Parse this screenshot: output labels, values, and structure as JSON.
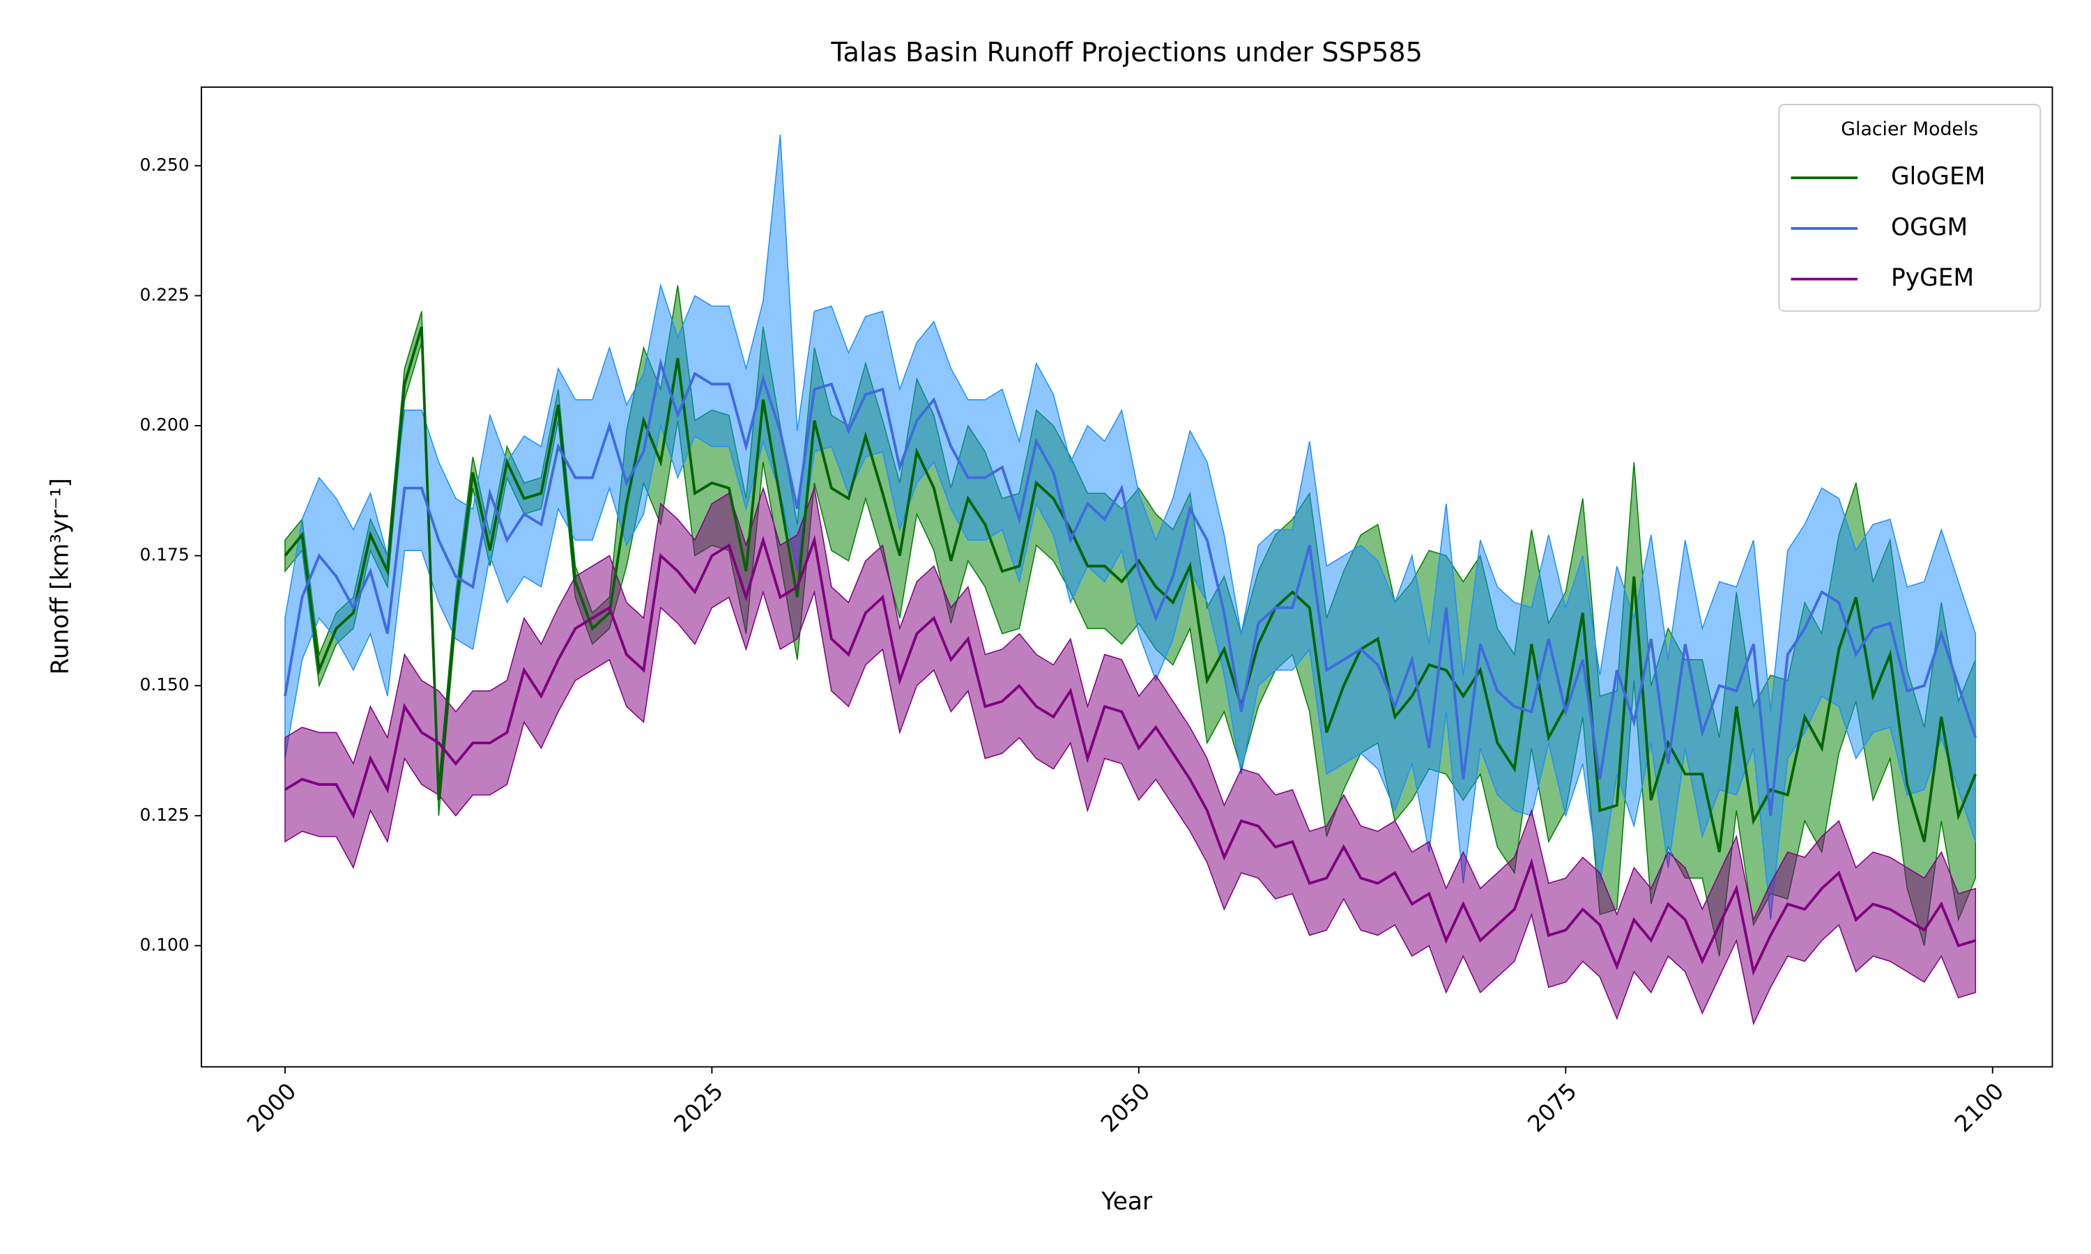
{
  "chart_data": {
    "type": "line",
    "title": "Talas Basin Runoff Projections under SSP585",
    "x_label": "Year",
    "y_label": "Runoff [km³yr⁻¹]",
    "xlim": [
      1995.1,
      2103.5
    ],
    "ylim": [
      0.0767,
      0.2651
    ],
    "xticks": [
      2000,
      2025,
      2050,
      2075,
      2100
    ],
    "yticks": [
      {
        "value": 0.1,
        "label": "0.100"
      },
      {
        "value": 0.125,
        "label": "0.125"
      },
      {
        "value": 0.15,
        "label": "0.150"
      },
      {
        "value": 0.175,
        "label": "0.175"
      },
      {
        "value": 0.2,
        "label": "0.200"
      },
      {
        "value": 0.225,
        "label": "0.225"
      },
      {
        "value": 0.25,
        "label": "0.250"
      }
    ],
    "legend_title": "Glacier Models",
    "legend_loc": "upper right",
    "x": [
      2000,
      2001,
      2002,
      2003,
      2004,
      2005,
      2006,
      2007,
      2008,
      2009,
      2010,
      2011,
      2012,
      2013,
      2014,
      2015,
      2016,
      2017,
      2018,
      2019,
      2020,
      2021,
      2022,
      2023,
      2024,
      2025,
      2026,
      2027,
      2028,
      2029,
      2030,
      2031,
      2032,
      2033,
      2034,
      2035,
      2036,
      2037,
      2038,
      2039,
      2040,
      2041,
      2042,
      2043,
      2044,
      2045,
      2046,
      2047,
      2048,
      2049,
      2050,
      2051,
      2052,
      2053,
      2054,
      2055,
      2056,
      2057,
      2058,
      2059,
      2060,
      2061,
      2062,
      2063,
      2064,
      2065,
      2066,
      2067,
      2068,
      2069,
      2070,
      2071,
      2072,
      2073,
      2074,
      2075,
      2076,
      2077,
      2078,
      2079,
      2080,
      2081,
      2082,
      2083,
      2084,
      2085,
      2086,
      2087,
      2088,
      2089,
      2090,
      2091,
      2092,
      2093,
      2094,
      2095,
      2096,
      2097,
      2098,
      2099
    ],
    "series": [
      {
        "name": "GloGEM",
        "color": "#006400",
        "fill_color": "#008000",
        "values": [
          0.175,
          0.179,
          0.153,
          0.161,
          0.164,
          0.179,
          0.172,
          0.208,
          0.219,
          0.128,
          0.165,
          0.191,
          0.176,
          0.193,
          0.186,
          0.187,
          0.204,
          0.17,
          0.161,
          0.164,
          0.185,
          0.201,
          0.193,
          0.213,
          0.187,
          0.189,
          0.188,
          0.172,
          0.205,
          0.186,
          0.167,
          0.201,
          0.188,
          0.186,
          0.198,
          0.187,
          0.175,
          0.195,
          0.188,
          0.174,
          0.186,
          0.181,
          0.172,
          0.173,
          0.189,
          0.186,
          0.18,
          0.173,
          0.173,
          0.17,
          0.174,
          0.169,
          0.166,
          0.173,
          0.151,
          0.157,
          0.146,
          0.158,
          0.165,
          0.168,
          0.165,
          0.141,
          0.15,
          0.157,
          0.159,
          0.144,
          0.148,
          0.154,
          0.153,
          0.148,
          0.153,
          0.139,
          0.134,
          0.158,
          0.14,
          0.146,
          0.164,
          0.126,
          0.127,
          0.171,
          0.128,
          0.139,
          0.133,
          0.133,
          0.118,
          0.146,
          0.124,
          0.13,
          0.129,
          0.144,
          0.138,
          0.157,
          0.167,
          0.148,
          0.156,
          0.131,
          0.12,
          0.144,
          0.125,
          0.133
        ],
        "lower": [
          0.172,
          0.176,
          0.15,
          0.158,
          0.161,
          0.176,
          0.169,
          0.205,
          0.216,
          0.125,
          0.162,
          0.188,
          0.173,
          0.19,
          0.183,
          0.184,
          0.201,
          0.167,
          0.158,
          0.161,
          0.173,
          0.189,
          0.181,
          0.201,
          0.175,
          0.177,
          0.176,
          0.16,
          0.193,
          0.174,
          0.155,
          0.189,
          0.176,
          0.174,
          0.186,
          0.175,
          0.163,
          0.183,
          0.176,
          0.162,
          0.174,
          0.169,
          0.16,
          0.161,
          0.177,
          0.174,
          0.168,
          0.161,
          0.161,
          0.158,
          0.162,
          0.157,
          0.154,
          0.161,
          0.139,
          0.145,
          0.134,
          0.146,
          0.153,
          0.156,
          0.145,
          0.121,
          0.13,
          0.137,
          0.139,
          0.124,
          0.128,
          0.134,
          0.133,
          0.128,
          0.133,
          0.119,
          0.114,
          0.138,
          0.12,
          0.126,
          0.144,
          0.106,
          0.107,
          0.151,
          0.108,
          0.119,
          0.113,
          0.113,
          0.098,
          0.126,
          0.104,
          0.11,
          0.109,
          0.124,
          0.118,
          0.137,
          0.147,
          0.128,
          0.136,
          0.111,
          0.1,
          0.124,
          0.105,
          0.113
        ],
        "upper": [
          0.178,
          0.182,
          0.156,
          0.164,
          0.167,
          0.182,
          0.175,
          0.211,
          0.222,
          0.131,
          0.168,
          0.194,
          0.179,
          0.196,
          0.189,
          0.19,
          0.207,
          0.173,
          0.164,
          0.167,
          0.199,
          0.215,
          0.207,
          0.227,
          0.201,
          0.203,
          0.202,
          0.186,
          0.219,
          0.2,
          0.181,
          0.215,
          0.202,
          0.2,
          0.212,
          0.201,
          0.189,
          0.209,
          0.202,
          0.188,
          0.2,
          0.195,
          0.186,
          0.187,
          0.203,
          0.2,
          0.194,
          0.187,
          0.187,
          0.184,
          0.188,
          0.183,
          0.18,
          0.187,
          0.165,
          0.171,
          0.16,
          0.172,
          0.179,
          0.182,
          0.187,
          0.163,
          0.172,
          0.179,
          0.181,
          0.166,
          0.17,
          0.176,
          0.175,
          0.17,
          0.175,
          0.161,
          0.156,
          0.18,
          0.162,
          0.168,
          0.186,
          0.148,
          0.149,
          0.193,
          0.15,
          0.161,
          0.155,
          0.155,
          0.14,
          0.168,
          0.146,
          0.152,
          0.151,
          0.166,
          0.16,
          0.179,
          0.189,
          0.17,
          0.178,
          0.153,
          0.142,
          0.166,
          0.147,
          0.155
        ]
      },
      {
        "name": "OGGM",
        "color": "#4169e1",
        "fill_color": "#1e90ff",
        "values": [
          0.148,
          0.167,
          0.175,
          0.171,
          0.165,
          0.172,
          0.16,
          0.188,
          0.188,
          0.178,
          0.171,
          0.169,
          0.187,
          0.178,
          0.183,
          0.181,
          0.196,
          0.19,
          0.19,
          0.2,
          0.189,
          0.195,
          0.212,
          0.202,
          0.21,
          0.208,
          0.208,
          0.196,
          0.209,
          0.199,
          0.184,
          0.207,
          0.208,
          0.199,
          0.206,
          0.207,
          0.192,
          0.201,
          0.205,
          0.196,
          0.19,
          0.19,
          0.192,
          0.182,
          0.197,
          0.191,
          0.178,
          0.185,
          0.182,
          0.188,
          0.172,
          0.163,
          0.171,
          0.184,
          0.178,
          0.164,
          0.145,
          0.162,
          0.165,
          0.165,
          0.177,
          0.153,
          0.155,
          0.157,
          0.154,
          0.146,
          0.155,
          0.138,
          0.165,
          0.132,
          0.158,
          0.149,
          0.146,
          0.145,
          0.159,
          0.145,
          0.155,
          0.132,
          0.153,
          0.143,
          0.159,
          0.135,
          0.158,
          0.141,
          0.15,
          0.149,
          0.158,
          0.125,
          0.156,
          0.161,
          0.168,
          0.166,
          0.156,
          0.161,
          0.162,
          0.149,
          0.15,
          0.16,
          0.15,
          0.14
        ],
        "lower": [
          0.136,
          0.155,
          0.163,
          0.159,
          0.153,
          0.16,
          0.148,
          0.176,
          0.176,
          0.166,
          0.159,
          0.157,
          0.175,
          0.166,
          0.171,
          0.169,
          0.184,
          0.178,
          0.178,
          0.188,
          0.177,
          0.183,
          0.2,
          0.19,
          0.198,
          0.196,
          0.196,
          0.184,
          0.197,
          0.187,
          0.172,
          0.195,
          0.196,
          0.187,
          0.194,
          0.195,
          0.18,
          0.189,
          0.193,
          0.184,
          0.178,
          0.178,
          0.18,
          0.17,
          0.185,
          0.179,
          0.166,
          0.173,
          0.17,
          0.176,
          0.16,
          0.151,
          0.159,
          0.172,
          0.166,
          0.152,
          0.133,
          0.15,
          0.153,
          0.153,
          0.157,
          0.133,
          0.135,
          0.137,
          0.134,
          0.126,
          0.135,
          0.118,
          0.145,
          0.112,
          0.138,
          0.129,
          0.126,
          0.125,
          0.139,
          0.125,
          0.135,
          0.112,
          0.133,
          0.123,
          0.139,
          0.115,
          0.138,
          0.121,
          0.13,
          0.129,
          0.138,
          0.105,
          0.136,
          0.141,
          0.148,
          0.146,
          0.136,
          0.141,
          0.142,
          0.129,
          0.13,
          0.14,
          0.13,
          0.12
        ],
        "upper": [
          0.163,
          0.182,
          0.19,
          0.186,
          0.18,
          0.187,
          0.175,
          0.203,
          0.203,
          0.193,
          0.186,
          0.184,
          0.202,
          0.193,
          0.198,
          0.196,
          0.211,
          0.205,
          0.205,
          0.215,
          0.204,
          0.21,
          0.227,
          0.217,
          0.225,
          0.223,
          0.223,
          0.211,
          0.224,
          0.256,
          0.199,
          0.222,
          0.223,
          0.214,
          0.221,
          0.222,
          0.207,
          0.216,
          0.22,
          0.211,
          0.205,
          0.205,
          0.207,
          0.197,
          0.212,
          0.206,
          0.193,
          0.2,
          0.197,
          0.203,
          0.187,
          0.178,
          0.186,
          0.199,
          0.193,
          0.179,
          0.16,
          0.177,
          0.18,
          0.18,
          0.197,
          0.173,
          0.175,
          0.177,
          0.174,
          0.166,
          0.175,
          0.158,
          0.185,
          0.152,
          0.178,
          0.169,
          0.166,
          0.165,
          0.179,
          0.165,
          0.175,
          0.152,
          0.173,
          0.163,
          0.179,
          0.155,
          0.178,
          0.161,
          0.17,
          0.169,
          0.178,
          0.145,
          0.176,
          0.181,
          0.188,
          0.186,
          0.176,
          0.181,
          0.182,
          0.169,
          0.17,
          0.18,
          0.17,
          0.16
        ]
      },
      {
        "name": "PyGEM",
        "color": "#800080",
        "fill_color": "#800080",
        "values": [
          0.13,
          0.132,
          0.131,
          0.131,
          0.125,
          0.136,
          0.13,
          0.146,
          0.141,
          0.139,
          0.135,
          0.139,
          0.139,
          0.141,
          0.153,
          0.148,
          0.155,
          0.161,
          0.163,
          0.165,
          0.156,
          0.153,
          0.175,
          0.172,
          0.168,
          0.175,
          0.177,
          0.167,
          0.178,
          0.167,
          0.169,
          0.178,
          0.159,
          0.156,
          0.164,
          0.167,
          0.151,
          0.16,
          0.163,
          0.155,
          0.159,
          0.146,
          0.147,
          0.15,
          0.146,
          0.144,
          0.149,
          0.136,
          0.146,
          0.145,
          0.138,
          0.142,
          0.137,
          0.132,
          0.126,
          0.117,
          0.124,
          0.123,
          0.119,
          0.12,
          0.112,
          0.113,
          0.119,
          0.113,
          0.112,
          0.114,
          0.108,
          0.11,
          0.101,
          0.108,
          0.101,
          0.104,
          0.107,
          0.116,
          0.102,
          0.103,
          0.107,
          0.104,
          0.096,
          0.105,
          0.101,
          0.108,
          0.105,
          0.097,
          0.104,
          0.111,
          0.095,
          0.102,
          0.108,
          0.107,
          0.111,
          0.114,
          0.105,
          0.108,
          0.107,
          0.105,
          0.103,
          0.108,
          0.1,
          0.101
        ],
        "lower": [
          0.12,
          0.122,
          0.121,
          0.121,
          0.115,
          0.126,
          0.12,
          0.136,
          0.131,
          0.129,
          0.125,
          0.129,
          0.129,
          0.131,
          0.143,
          0.138,
          0.145,
          0.151,
          0.153,
          0.155,
          0.146,
          0.143,
          0.165,
          0.162,
          0.158,
          0.165,
          0.167,
          0.157,
          0.168,
          0.157,
          0.159,
          0.168,
          0.149,
          0.146,
          0.154,
          0.157,
          0.141,
          0.15,
          0.153,
          0.145,
          0.149,
          0.136,
          0.137,
          0.14,
          0.136,
          0.134,
          0.139,
          0.126,
          0.136,
          0.135,
          0.128,
          0.132,
          0.127,
          0.122,
          0.116,
          0.107,
          0.114,
          0.113,
          0.109,
          0.11,
          0.102,
          0.103,
          0.109,
          0.103,
          0.102,
          0.104,
          0.098,
          0.1,
          0.091,
          0.098,
          0.091,
          0.094,
          0.097,
          0.106,
          0.092,
          0.093,
          0.097,
          0.094,
          0.086,
          0.095,
          0.091,
          0.098,
          0.095,
          0.087,
          0.094,
          0.101,
          0.085,
          0.092,
          0.098,
          0.097,
          0.101,
          0.104,
          0.095,
          0.098,
          0.097,
          0.095,
          0.093,
          0.098,
          0.09,
          0.091
        ],
        "upper": [
          0.14,
          0.142,
          0.141,
          0.141,
          0.135,
          0.146,
          0.14,
          0.156,
          0.151,
          0.149,
          0.145,
          0.149,
          0.149,
          0.151,
          0.163,
          0.158,
          0.165,
          0.171,
          0.173,
          0.175,
          0.166,
          0.163,
          0.185,
          0.182,
          0.178,
          0.185,
          0.187,
          0.177,
          0.188,
          0.177,
          0.179,
          0.188,
          0.169,
          0.166,
          0.174,
          0.177,
          0.161,
          0.17,
          0.173,
          0.165,
          0.169,
          0.156,
          0.157,
          0.16,
          0.156,
          0.154,
          0.159,
          0.146,
          0.156,
          0.155,
          0.148,
          0.152,
          0.147,
          0.142,
          0.136,
          0.127,
          0.134,
          0.133,
          0.129,
          0.13,
          0.122,
          0.123,
          0.129,
          0.123,
          0.122,
          0.124,
          0.118,
          0.12,
          0.111,
          0.118,
          0.111,
          0.114,
          0.117,
          0.126,
          0.112,
          0.113,
          0.117,
          0.114,
          0.106,
          0.115,
          0.111,
          0.118,
          0.115,
          0.107,
          0.114,
          0.121,
          0.105,
          0.112,
          0.118,
          0.117,
          0.121,
          0.124,
          0.115,
          0.118,
          0.117,
          0.115,
          0.113,
          0.118,
          0.11,
          0.111
        ]
      }
    ]
  }
}
